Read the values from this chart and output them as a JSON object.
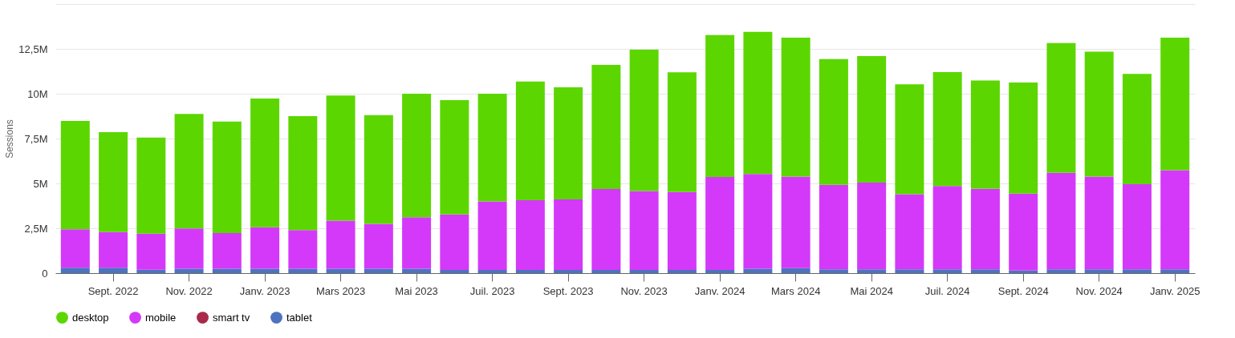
{
  "chart_data": {
    "type": "bar",
    "stacked": true,
    "ylabel": "Sessions",
    "categories": [
      null,
      "Sept. 2022",
      null,
      "Nov. 2022",
      null,
      "Janv. 2023",
      null,
      "Mars 2023",
      null,
      "Mai 2023",
      null,
      "Juil. 2023",
      null,
      "Sept. 2023",
      null,
      "Nov. 2023",
      null,
      "Janv. 2024",
      null,
      "Mars 2024",
      null,
      "Mai 2024",
      null,
      "Juil. 2024",
      null,
      "Sept. 2024",
      null,
      "Nov. 2024",
      null,
      "Janv. 2025"
    ],
    "series": [
      {
        "name": "tablet",
        "color": "#4e73be",
        "values": [
          0.3,
          0.3,
          0.19,
          0.24,
          0.24,
          0.24,
          0.24,
          0.24,
          0.24,
          0.24,
          0.18,
          0.18,
          0.18,
          0.18,
          0.18,
          0.18,
          0.18,
          0.18,
          0.24,
          0.28,
          0.21,
          0.21,
          0.21,
          0.21,
          0.21,
          0.15,
          0.21,
          0.21,
          0.21,
          0.21
        ]
      },
      {
        "name": "smart tv",
        "color": "#a8294a",
        "values": [
          0,
          0,
          0,
          0,
          0,
          0,
          0,
          0,
          0,
          0,
          0,
          0,
          0,
          0,
          0,
          0,
          0,
          0,
          0,
          0,
          0,
          0,
          0,
          0,
          0,
          0,
          0,
          0,
          0,
          0
        ]
      },
      {
        "name": "mobile",
        "color": "#d439f9",
        "values": [
          2.14,
          1.99,
          2.01,
          2.25,
          1.99,
          2.32,
          2.16,
          2.68,
          2.51,
          2.87,
          3.09,
          3.82,
          3.88,
          3.93,
          4.51,
          4.4,
          4.34,
          5.18,
          5.28,
          5.1,
          4.71,
          4.84,
          4.19,
          4.64,
          4.49,
          4.28,
          5.38,
          5.17,
          4.75,
          5.53
        ]
      },
      {
        "name": "desktop",
        "color": "#5cd600",
        "values": [
          6.04,
          5.57,
          5.36,
          6.38,
          6.22,
          7.17,
          6.35,
          6.98,
          6.06,
          6.89,
          6.37,
          6.0,
          6.62,
          6.25,
          6.92,
          7.88,
          6.67,
          7.91,
          7.93,
          7.74,
          7.01,
          7.05,
          6.12,
          6.36,
          6.04,
          6.2,
          7.23,
          6.96,
          6.14,
          7.38
        ]
      }
    ],
    "ylim": [
      0,
      15
    ],
    "yticks": [
      {
        "value": 0,
        "label": "0"
      },
      {
        "value": 2.5,
        "label": "2,5M"
      },
      {
        "value": 5,
        "label": "5M"
      },
      {
        "value": 7.5,
        "label": "7,5M"
      },
      {
        "value": 10,
        "label": "10M"
      },
      {
        "value": 12.5,
        "label": "12,5M"
      },
      {
        "value": 15,
        "label": null
      }
    ],
    "grid": "y",
    "legend": "bottom"
  }
}
